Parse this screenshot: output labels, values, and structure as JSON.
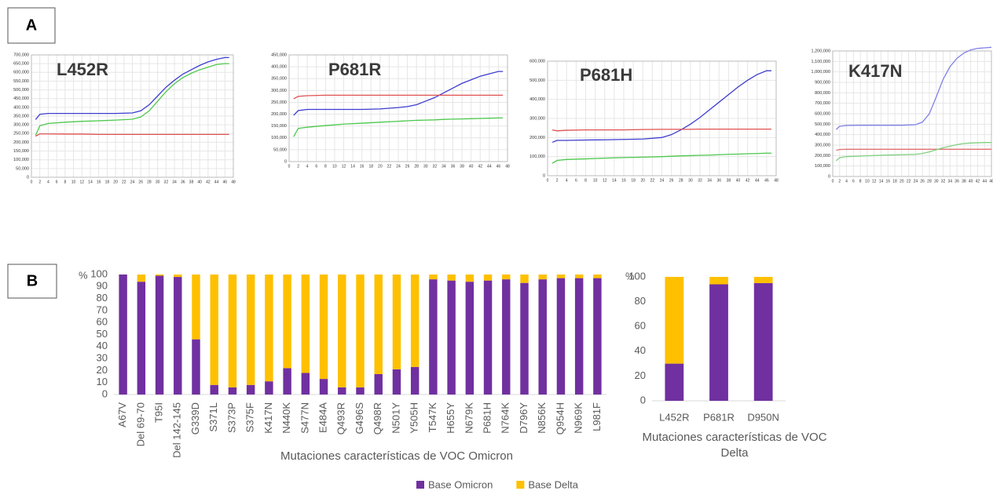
{
  "panel_labels": [
    "A",
    "B"
  ],
  "chart_data": [
    {
      "type": "line",
      "title": "L452R",
      "x": [
        1,
        2,
        4,
        8,
        12,
        16,
        20,
        24,
        26,
        28,
        30,
        32,
        34,
        36,
        38,
        40,
        42,
        44,
        46,
        47
      ],
      "series": [
        {
          "color": "#3c3cd0",
          "values": [
            330000,
            360000,
            365000,
            365000,
            365000,
            365000,
            365000,
            368000,
            380000,
            415000,
            465000,
            515000,
            555000,
            590000,
            615000,
            640000,
            660000,
            675000,
            685000,
            685000
          ]
        },
        {
          "color": "#e05050",
          "values": [
            235000,
            248000,
            248000,
            247000,
            247000,
            245000,
            245000,
            245000,
            245000,
            245000,
            245000,
            245000,
            245000,
            245000,
            245000,
            245000,
            245000,
            245000,
            245000,
            245000
          ]
        },
        {
          "color": "#4cc84c",
          "values": [
            240000,
            295000,
            308000,
            315000,
            320000,
            323000,
            327000,
            332000,
            345000,
            380000,
            435000,
            490000,
            535000,
            570000,
            595000,
            615000,
            630000,
            645000,
            650000,
            650000
          ]
        }
      ],
      "xlim": [
        0,
        48
      ],
      "xticks": [
        0,
        2,
        4,
        6,
        8,
        10,
        12,
        14,
        16,
        18,
        20,
        22,
        24,
        26,
        28,
        30,
        32,
        34,
        36,
        38,
        40,
        42,
        44,
        46,
        48
      ],
      "ylim": [
        0,
        700000
      ],
      "yticks": [
        0,
        {
          "value": 50000,
          "label": "50,000"
        },
        {
          "value": 100000,
          "label": "100,000"
        },
        {
          "value": 150000,
          "label": "150,000"
        },
        {
          "value": 200000,
          "label": "200,000"
        },
        {
          "value": 250000,
          "label": "250,000"
        },
        {
          "value": 300000,
          "label": "300,000"
        },
        {
          "value": 350000,
          "label": "350,000"
        },
        {
          "value": 400000,
          "label": "400,000"
        },
        {
          "value": 450000,
          "label": "450,000"
        },
        {
          "value": 500000,
          "label": "500,000"
        },
        {
          "value": 550000,
          "label": "550,000"
        },
        {
          "value": 600000,
          "label": "600,000"
        },
        {
          "value": 650000,
          "label": "650,000"
        },
        {
          "value": 700000,
          "label": "700,000"
        }
      ],
      "grid": true
    },
    {
      "type": "line",
      "title": "P681R",
      "x": [
        1,
        2,
        4,
        8,
        12,
        16,
        20,
        24,
        26,
        28,
        30,
        32,
        34,
        36,
        38,
        40,
        42,
        44,
        46,
        47
      ],
      "series": [
        {
          "color": "#3c3cd0",
          "values": [
            195000,
            215000,
            220000,
            220000,
            220000,
            220000,
            222000,
            228000,
            232000,
            240000,
            255000,
            270000,
            290000,
            310000,
            330000,
            345000,
            360000,
            370000,
            380000,
            380000
          ]
        },
        {
          "color": "#e05050",
          "values": [
            265000,
            275000,
            278000,
            280000,
            280000,
            280000,
            280000,
            280000,
            280000,
            280000,
            280000,
            280000,
            280000,
            280000,
            280000,
            280000,
            280000,
            280000,
            280000,
            280000
          ]
        },
        {
          "color": "#4cc84c",
          "values": [
            105000,
            140000,
            145000,
            152000,
            158000,
            162000,
            166000,
            170000,
            172000,
            174000,
            175000,
            176000,
            178000,
            179000,
            180000,
            181000,
            182000,
            183000,
            184000,
            184000
          ]
        }
      ],
      "xlim": [
        0,
        48
      ],
      "xticks": [
        0,
        2,
        4,
        6,
        8,
        10,
        12,
        14,
        16,
        18,
        20,
        22,
        24,
        26,
        28,
        30,
        32,
        34,
        36,
        38,
        40,
        42,
        44,
        46,
        48
      ],
      "ylim": [
        0,
        450000
      ],
      "yticks": [
        0,
        {
          "value": 50000,
          "label": "50,000"
        },
        {
          "value": 100000,
          "label": "100,000"
        },
        {
          "value": 150000,
          "label": "150,000"
        },
        {
          "value": 200000,
          "label": "200,000"
        },
        {
          "value": 250000,
          "label": "250,000"
        },
        {
          "value": 300000,
          "label": "300,000"
        },
        {
          "value": 350000,
          "label": "350,000"
        },
        {
          "value": 400000,
          "label": "400,000"
        },
        {
          "value": 450000,
          "label": "450,000"
        }
      ],
      "grid": true
    },
    {
      "type": "line",
      "title": "P681H",
      "x": [
        1,
        2,
        4,
        8,
        12,
        16,
        20,
        24,
        26,
        28,
        30,
        32,
        34,
        36,
        38,
        40,
        42,
        44,
        46,
        47
      ],
      "series": [
        {
          "color": "#3c3cd0",
          "values": [
            175000,
            185000,
            185000,
            187000,
            188000,
            190000,
            192000,
            200000,
            215000,
            240000,
            270000,
            305000,
            345000,
            385000,
            425000,
            465000,
            500000,
            530000,
            550000,
            550000
          ]
        },
        {
          "color": "#e05050",
          "values": [
            240000,
            235000,
            238000,
            240000,
            240000,
            240000,
            242000,
            243000,
            243000,
            243000,
            243000,
            244000,
            244000,
            244000,
            244000,
            244000,
            244000,
            244000,
            244000,
            244000
          ]
        },
        {
          "color": "#4cc84c",
          "values": [
            65000,
            80000,
            85000,
            88000,
            92000,
            95000,
            97000,
            100000,
            102000,
            104000,
            105000,
            107000,
            108000,
            110000,
            112000,
            113000,
            115000,
            116000,
            118000,
            118000
          ]
        }
      ],
      "xlim": [
        0,
        48
      ],
      "xticks": [
        0,
        2,
        4,
        6,
        8,
        10,
        12,
        14,
        16,
        18,
        20,
        22,
        24,
        26,
        28,
        30,
        32,
        34,
        36,
        38,
        40,
        42,
        44,
        46,
        48
      ],
      "ylim": [
        0,
        600000
      ],
      "yticks": [
        0,
        {
          "value": 100000,
          "label": "100,000"
        },
        {
          "value": 200000,
          "label": "200,000"
        },
        {
          "value": 300000,
          "label": "300,000"
        },
        {
          "value": 400000,
          "label": "400,000"
        },
        {
          "value": 500000,
          "label": "500,000"
        },
        {
          "value": 600000,
          "label": "600,000"
        }
      ],
      "grid": true
    },
    {
      "type": "line",
      "title": "K417N",
      "x": [
        1,
        2,
        4,
        8,
        12,
        16,
        20,
        24,
        26,
        28,
        30,
        32,
        34,
        36,
        38,
        40,
        42,
        44,
        46
      ],
      "series": [
        {
          "color": "#8080e8",
          "values": [
            450000,
            480000,
            488000,
            490000,
            490000,
            490000,
            490000,
            495000,
            520000,
            600000,
            760000,
            930000,
            1050000,
            1130000,
            1180000,
            1210000,
            1225000,
            1230000,
            1235000
          ]
        },
        {
          "color": "#e07070",
          "values": [
            250000,
            258000,
            260000,
            260000,
            260000,
            260000,
            260000,
            260000,
            260000,
            260000,
            260000,
            260000,
            260000,
            260000,
            260000,
            260000,
            260000,
            260000,
            260000
          ]
        },
        {
          "color": "#80d080",
          "values": [
            150000,
            180000,
            190000,
            195000,
            200000,
            205000,
            208000,
            212000,
            220000,
            235000,
            255000,
            275000,
            290000,
            305000,
            315000,
            320000,
            322000,
            325000,
            325000
          ]
        }
      ],
      "xlim": [
        0,
        46
      ],
      "xticks": [
        0,
        2,
        4,
        6,
        8,
        10,
        12,
        14,
        16,
        18,
        20,
        22,
        24,
        26,
        28,
        30,
        32,
        34,
        36,
        38,
        40,
        42,
        44,
        46
      ],
      "ylim": [
        0,
        1200000
      ],
      "yticks": [
        0,
        {
          "value": 100000,
          "label": "100,000"
        },
        {
          "value": 200000,
          "label": "200,000"
        },
        {
          "value": 300000,
          "label": "300,000"
        },
        {
          "value": 400000,
          "label": "400,000"
        },
        {
          "value": 500000,
          "label": "500,000"
        },
        {
          "value": 600000,
          "label": "600,000"
        },
        {
          "value": 700000,
          "label": "700,000"
        },
        {
          "value": 800000,
          "label": "800,000"
        },
        {
          "value": 900000,
          "label": "900,000"
        },
        {
          "value": 1000000,
          "label": "1,000,000"
        },
        {
          "value": 1100000,
          "label": "1,100,000"
        },
        {
          "value": 1200000,
          "label": "1,200,000"
        }
      ],
      "grid": true
    },
    {
      "type": "stacked_bar",
      "ylabel": "%",
      "xlabel": "Mutaciones características de VOC Omicron",
      "categories": [
        "A67V",
        "Del 69-70",
        "T95I",
        "Del 142-145",
        "G339D",
        "S371L",
        "S373P",
        "S375F",
        "K417N",
        "N440K",
        "S477N",
        "E484A",
        "Q493R",
        "G496S",
        "Q498R",
        "N501Y",
        "Y505H",
        "T547K",
        "H655Y",
        "N679K",
        "P681H",
        "N764K",
        "D796Y",
        "N856K",
        "Q954H",
        "N969K",
        "L981F"
      ],
      "series": [
        {
          "name": "Base Omicron",
          "color": "#7030a0",
          "values": [
            100,
            94,
            99,
            98,
            46,
            8,
            6,
            8,
            11,
            22,
            18,
            13,
            6,
            6,
            17,
            21,
            23,
            96,
            95,
            94,
            95,
            96,
            93,
            96,
            97,
            97,
            97
          ]
        },
        {
          "name": "Base Delta",
          "color": "#ffc000",
          "values": [
            0,
            6,
            1,
            2,
            54,
            92,
            94,
            92,
            89,
            78,
            82,
            87,
            94,
            94,
            83,
            79,
            77,
            4,
            5,
            6,
            5,
            4,
            7,
            4,
            3,
            3,
            3
          ]
        }
      ],
      "ylim": [
        0,
        100
      ],
      "yticks": [
        0,
        10,
        20,
        30,
        40,
        50,
        60,
        70,
        80,
        90,
        100
      ],
      "legend": "bottom"
    },
    {
      "type": "stacked_bar",
      "ylabel": "%",
      "xlabel": "Mutaciones características de VOC Delta",
      "categories": [
        "L452R",
        "P681R",
        "D950N"
      ],
      "series": [
        {
          "name": "Base Omicron",
          "color": "#7030a0",
          "values": [
            30,
            94,
            95
          ]
        },
        {
          "name": "Base Delta",
          "color": "#ffc000",
          "values": [
            70,
            6,
            5
          ]
        }
      ],
      "ylim": [
        0,
        100
      ],
      "yticks": [
        0,
        20,
        40,
        60,
        80,
        100
      ]
    }
  ]
}
